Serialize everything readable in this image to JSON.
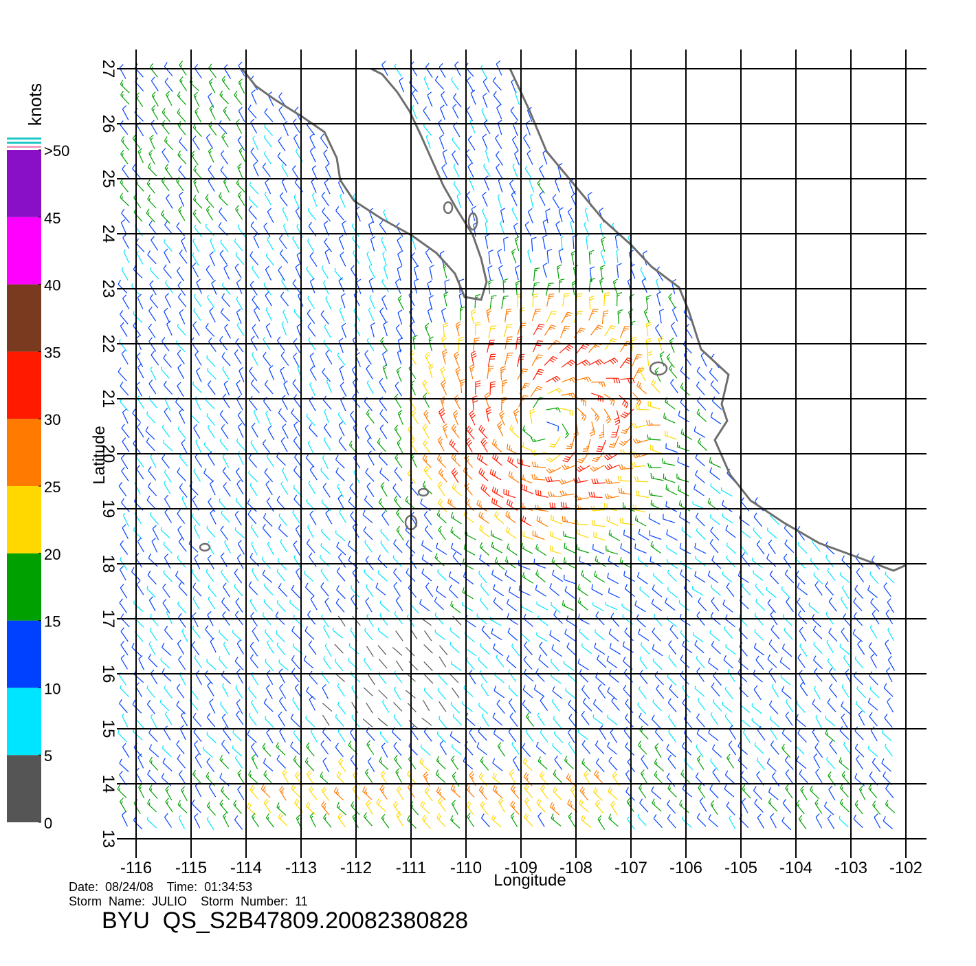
{
  "chart_data": {
    "type": "barb-map",
    "xlabel": "Longitude",
    "ylabel": "Latitude",
    "xlim": [
      -116,
      -102
    ],
    "ylim": [
      13,
      27
    ],
    "xticks": [
      -116,
      -115,
      -114,
      -113,
      -112,
      -111,
      -110,
      -109,
      -108,
      -107,
      -106,
      -105,
      -104,
      -103,
      -102
    ],
    "yticks": [
      13,
      14,
      15,
      16,
      17,
      18,
      19,
      20,
      21,
      22,
      23,
      24,
      25,
      26,
      27
    ],
    "grid": true,
    "colorbar": {
      "label": "knots",
      "lim": [
        0,
        50
      ],
      "ticks": [
        0,
        5,
        10,
        15,
        20,
        25,
        30,
        35,
        40,
        45,
        {
          "value": 50,
          "label": ">50"
        }
      ],
      "colors": [
        "#555555",
        "#00e5ff",
        "#0040ff",
        "#00a000",
        "#ffd800",
        "#ff7a00",
        "#ff1a00",
        "#7a3a20",
        "#ff00ff",
        "#8a10c8"
      ]
    },
    "info": [
      "Date:  08/24/08    Time:  01:34:53",
      "Storm  Name:  JULIO    Storm  Number:  11"
    ],
    "title": "BYU  QS_S2B47809.20082380828"
  }
}
